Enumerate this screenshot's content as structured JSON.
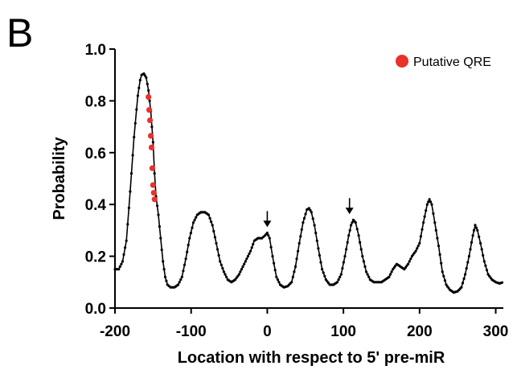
{
  "panel_label": "B",
  "chart_data": {
    "type": "line",
    "xlabel": "Location with respect to 5' pre-miR",
    "ylabel": "Probability",
    "xlim": [
      -200,
      310
    ],
    "ylim": [
      0.0,
      1.0
    ],
    "x_ticks": [
      -200,
      -100,
      0,
      100,
      200,
      300
    ],
    "x_tick_labels": [
      "-200",
      "-100",
      "0",
      "100",
      "200",
      "300"
    ],
    "y_ticks": [
      0.0,
      0.2,
      0.4,
      0.6,
      0.8,
      1.0
    ],
    "y_tick_labels": [
      "0.0",
      "0.2",
      "0.4",
      "0.6",
      "0.8",
      "1.0"
    ],
    "grid": false,
    "legend_position": "top-right",
    "series": [
      {
        "color": "#000000",
        "marker": "dot",
        "points": [
          [
            -200,
            0.15
          ],
          [
            -195,
            0.15
          ],
          [
            -190,
            0.18
          ],
          [
            -185,
            0.26
          ],
          [
            -180,
            0.45
          ],
          [
            -175,
            0.66
          ],
          [
            -170,
            0.82
          ],
          [
            -167,
            0.88
          ],
          [
            -165,
            0.9
          ],
          [
            -162,
            0.905
          ],
          [
            -159,
            0.89
          ],
          [
            -156,
            0.84
          ],
          [
            -153,
            0.76
          ],
          [
            -150,
            0.64
          ],
          [
            -148,
            0.52
          ],
          [
            -146,
            0.43
          ],
          [
            -143,
            0.36
          ],
          [
            -140,
            0.27
          ],
          [
            -137,
            0.18
          ],
          [
            -134,
            0.12
          ],
          [
            -131,
            0.09
          ],
          [
            -127,
            0.08
          ],
          [
            -122,
            0.08
          ],
          [
            -117,
            0.09
          ],
          [
            -112,
            0.12
          ],
          [
            -107,
            0.19
          ],
          [
            -102,
            0.27
          ],
          [
            -97,
            0.33
          ],
          [
            -92,
            0.36
          ],
          [
            -87,
            0.37
          ],
          [
            -82,
            0.37
          ],
          [
            -77,
            0.36
          ],
          [
            -72,
            0.32
          ],
          [
            -67,
            0.25
          ],
          [
            -62,
            0.18
          ],
          [
            -57,
            0.14
          ],
          [
            -52,
            0.11
          ],
          [
            -47,
            0.1
          ],
          [
            -42,
            0.11
          ],
          [
            -37,
            0.13
          ],
          [
            -32,
            0.16
          ],
          [
            -27,
            0.19
          ],
          [
            -22,
            0.22
          ],
          [
            -17,
            0.26
          ],
          [
            -12,
            0.27
          ],
          [
            -7,
            0.27
          ],
          [
            -3,
            0.28
          ],
          [
            0,
            0.29
          ],
          [
            3,
            0.27
          ],
          [
            7,
            0.2
          ],
          [
            12,
            0.12
          ],
          [
            17,
            0.09
          ],
          [
            22,
            0.08
          ],
          [
            27,
            0.085
          ],
          [
            32,
            0.1
          ],
          [
            37,
            0.16
          ],
          [
            42,
            0.25
          ],
          [
            47,
            0.33
          ],
          [
            52,
            0.38
          ],
          [
            55,
            0.385
          ],
          [
            58,
            0.37
          ],
          [
            62,
            0.32
          ],
          [
            67,
            0.23
          ],
          [
            72,
            0.15
          ],
          [
            77,
            0.11
          ],
          [
            82,
            0.09
          ],
          [
            87,
            0.09
          ],
          [
            92,
            0.1
          ],
          [
            97,
            0.13
          ],
          [
            102,
            0.2
          ],
          [
            107,
            0.28
          ],
          [
            110,
            0.32
          ],
          [
            113,
            0.34
          ],
          [
            116,
            0.33
          ],
          [
            120,
            0.28
          ],
          [
            125,
            0.2
          ],
          [
            130,
            0.14
          ],
          [
            135,
            0.11
          ],
          [
            140,
            0.1
          ],
          [
            145,
            0.1
          ],
          [
            150,
            0.1
          ],
          [
            155,
            0.11
          ],
          [
            160,
            0.12
          ],
          [
            165,
            0.15
          ],
          [
            170,
            0.17
          ],
          [
            175,
            0.16
          ],
          [
            180,
            0.15
          ],
          [
            185,
            0.17
          ],
          [
            190,
            0.2
          ],
          [
            195,
            0.22
          ],
          [
            200,
            0.25
          ],
          [
            205,
            0.33
          ],
          [
            210,
            0.4
          ],
          [
            213,
            0.42
          ],
          [
            216,
            0.4
          ],
          [
            220,
            0.33
          ],
          [
            225,
            0.24
          ],
          [
            230,
            0.14
          ],
          [
            235,
            0.09
          ],
          [
            240,
            0.07
          ],
          [
            245,
            0.06
          ],
          [
            250,
            0.065
          ],
          [
            255,
            0.08
          ],
          [
            260,
            0.13
          ],
          [
            265,
            0.2
          ],
          [
            270,
            0.28
          ],
          [
            273,
            0.32
          ],
          [
            276,
            0.3
          ],
          [
            280,
            0.25
          ],
          [
            285,
            0.18
          ],
          [
            290,
            0.13
          ],
          [
            295,
            0.11
          ],
          [
            300,
            0.1
          ],
          [
            305,
            0.095
          ],
          [
            310,
            0.1
          ]
        ]
      },
      {
        "name": "Putative QRE",
        "color": "#e8322a",
        "marker": "circle",
        "points": [
          [
            -156,
            0.815
          ],
          [
            -155,
            0.765
          ],
          [
            -154,
            0.725
          ],
          [
            -153,
            0.665
          ],
          [
            -152,
            0.62
          ],
          [
            -151,
            0.54
          ],
          [
            -150,
            0.475
          ],
          [
            -149,
            0.445
          ],
          [
            -148,
            0.42
          ]
        ]
      }
    ],
    "annotations": [
      {
        "type": "down-arrow",
        "x": 0,
        "y": 0.3
      },
      {
        "type": "down-arrow",
        "x": 108,
        "y": 0.35
      }
    ]
  }
}
